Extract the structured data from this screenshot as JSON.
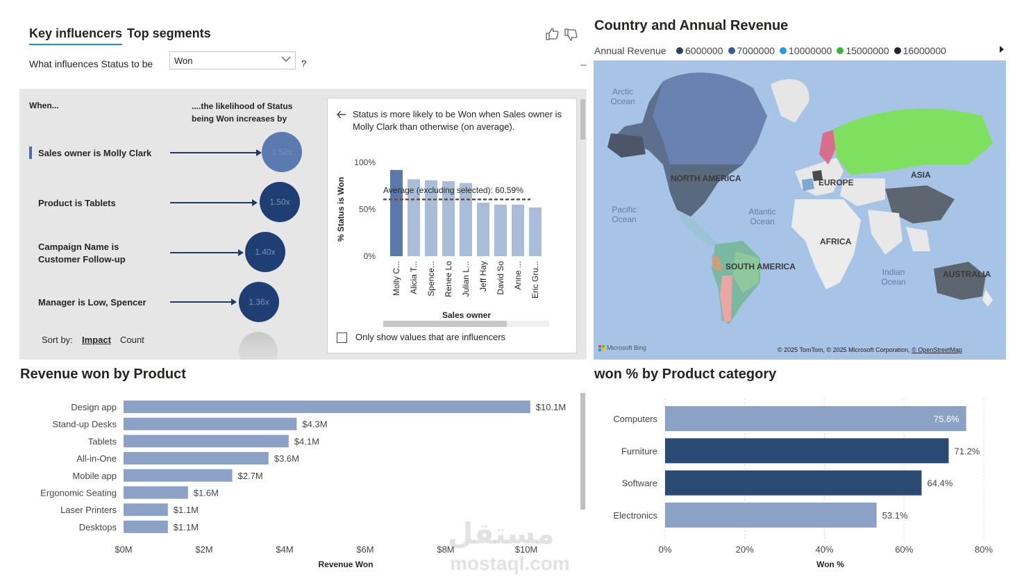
{
  "key_influencers": {
    "tabs": [
      "Key influencers",
      "Top segments"
    ],
    "question_label": "What influences Status to be",
    "question_value": "Won",
    "question_mark": "?",
    "col_when": "When...",
    "col_likelihood": "....the likelihood of Status being Won increases by",
    "factors": [
      {
        "label": "Sales owner is Molly Clark",
        "multiplier": "1.52x"
      },
      {
        "label": "Product is Tablets",
        "multiplier": "1.50x"
      },
      {
        "label": "Campaign Name is Customer Follow-up",
        "multiplier": "1.40x"
      },
      {
        "label": "Manager is Low, Spencer",
        "multiplier": "1.36x"
      }
    ],
    "sort_by_label": "Sort by:",
    "sort_options": [
      "Impact",
      "Count"
    ],
    "detail": {
      "description": "Status is more likely to be Won when Sales owner is Molly Clark than otherwise (on average).",
      "y_axis_label": "% Status is Won",
      "x_axis_label": "Sales owner",
      "average_label": "Average (excluding selected): 60.59%",
      "checkbox_label": "Only show values that are influencers",
      "chart_data": {
        "type": "bar",
        "categories": [
          "Molly C...",
          "Alicia T...",
          "Spence...",
          "Renee Lo",
          "Julian L...",
          "Jeff Hay",
          "David So",
          "Anne ...",
          "Eric Gru..."
        ],
        "values": [
          92,
          82,
          81,
          80,
          78,
          57,
          55,
          55,
          52
        ],
        "ylim": [
          0,
          100
        ],
        "y_ticks": [
          "0%",
          "50%",
          "100%"
        ],
        "average": 60.59,
        "colors": {
          "selected": "#5a78a8",
          "other": "#a9bcd8",
          "average_line": "#555555"
        }
      }
    }
  },
  "map_panel": {
    "title": "Country and Annual Revenue",
    "legend_title": "Annual Revenue",
    "legend": [
      {
        "label": "6000000",
        "color": "#2e4160"
      },
      {
        "label": "7000000",
        "color": "#335b94"
      },
      {
        "label": "10000000",
        "color": "#1a9ee8"
      },
      {
        "label": "15000000",
        "color": "#35b53a"
      },
      {
        "label": "16000000",
        "color": "#22262c"
      }
    ],
    "continents": [
      "NORTH AMERICA",
      "EUROPE",
      "ASIA",
      "AFRICA",
      "SOUTH AMERICA",
      "AUSTRALIA"
    ],
    "oceans": [
      "Arctic Ocean",
      "Pacific Ocean",
      "Atlantic Ocean",
      "Indian Ocean"
    ],
    "brand": "Microsoft Bing",
    "copyright": "© 2025 TomTom, © 2025 Microsoft Corporation, ",
    "copyright_link": "© OpenStreetMap"
  },
  "revenue_panel": {
    "title": "Revenue won by Product",
    "x_axis_label": "Revenue Won",
    "chart_data": {
      "type": "bar",
      "orientation": "horizontal",
      "categories": [
        "Design app",
        "Stand-up Desks",
        "Tablets",
        "All-in-One",
        "Mobile app",
        "Ergonomic Seating",
        "Laser Printers",
        "Desktops"
      ],
      "values": [
        10.1,
        4.3,
        4.1,
        3.6,
        2.7,
        1.6,
        1.1,
        1.1
      ],
      "data_labels": [
        "$10.1M",
        "$4.3M",
        "$4.1M",
        "$3.6M",
        "$2.7M",
        "$1.6M",
        "$1.1M",
        "$1.1M"
      ],
      "unit": "$M",
      "xlim": [
        0,
        11
      ],
      "x_ticks": [
        0,
        2,
        4,
        6,
        8,
        10
      ],
      "x_tick_labels": [
        "$0M",
        "$2M",
        "$4M",
        "$6M",
        "$8M",
        "$10M"
      ],
      "bar_color": "#8ba2c6"
    }
  },
  "won_panel": {
    "title": "won % by Product category",
    "x_axis_label": "Won %",
    "chart_data": {
      "type": "bar",
      "orientation": "horizontal",
      "categories": [
        "Computers",
        "Furniture",
        "Software",
        "Electronics"
      ],
      "values": [
        75.6,
        71.2,
        64.4,
        53.1
      ],
      "data_labels": [
        "75.6%",
        "71.2%",
        "64.4%",
        "53.1%"
      ],
      "xlim": [
        0,
        80
      ],
      "x_ticks": [
        0,
        20,
        40,
        60,
        80
      ],
      "x_tick_labels": [
        "0%",
        "20%",
        "40%",
        "60%",
        "80%"
      ],
      "bar_colors": [
        "#8ba2c6",
        "#2b4a73",
        "#2b4a73",
        "#8ba2c6"
      ]
    }
  },
  "watermark": {
    "arabic": "مستقل",
    "latin": "mostaql.com"
  }
}
